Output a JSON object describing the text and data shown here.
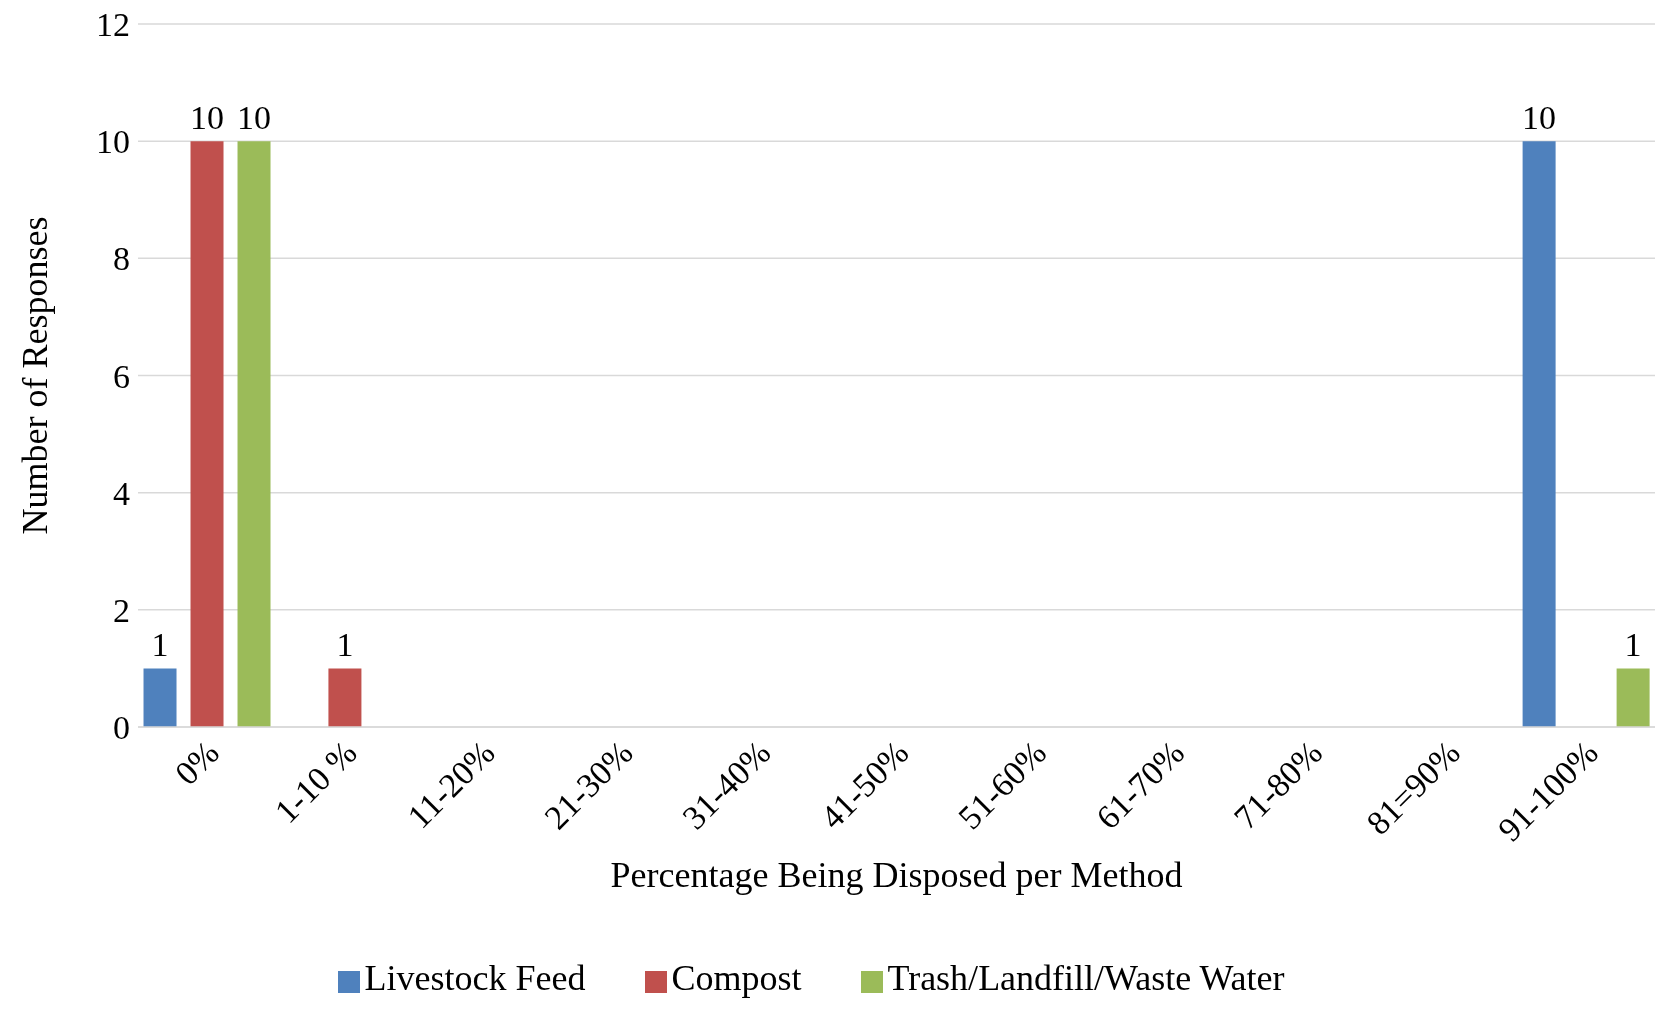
{
  "chart_data": {
    "type": "bar",
    "xlabel": "Percentage Being Disposed per Method",
    "ylabel": "Number of Responses",
    "categories": [
      "0%",
      "1-10 %",
      "11-20%",
      "21-30%",
      "31-40%",
      "41-50%",
      "51-60%",
      "61-70%",
      "71-80%",
      "81=90%",
      "91-100%"
    ],
    "series": [
      {
        "name": "Livestock Feed",
        "color": "#4f81bd",
        "values": [
          1,
          null,
          null,
          null,
          null,
          null,
          null,
          null,
          null,
          null,
          10
        ]
      },
      {
        "name": "Compost",
        "color": "#c0504d",
        "values": [
          10,
          1,
          null,
          null,
          null,
          null,
          null,
          null,
          null,
          null,
          null
        ]
      },
      {
        "name": "Trash/Landfill/Waste Water",
        "color": "#9bbb59",
        "values": [
          10,
          null,
          null,
          null,
          null,
          null,
          null,
          null,
          null,
          null,
          1
        ]
      }
    ],
    "ylim": [
      0,
      12
    ],
    "yticks": [
      0,
      2,
      4,
      6,
      8,
      10,
      12
    ],
    "grid": "y",
    "legend": "bottom",
    "data_labels": true
  }
}
